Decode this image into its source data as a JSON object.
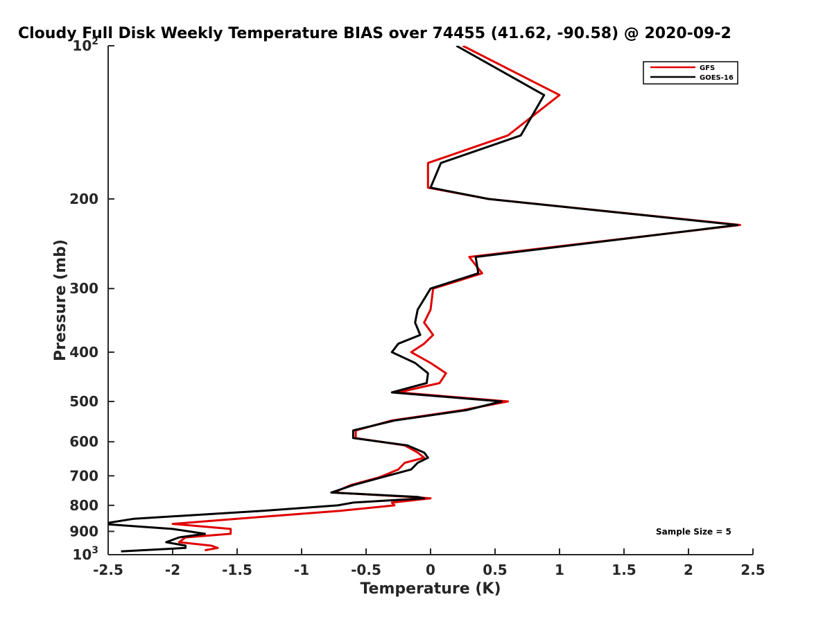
{
  "chart_data": {
    "type": "line",
    "title": "Cloudy Full Disk Weekly Temperature BIAS over 74455 (41.62, -90.58) @ 2020-09-2",
    "xlabel": "Temperature (K)",
    "ylabel": "Pressure (mb)",
    "xlim": [
      -2.5,
      2.5
    ],
    "ylim": [
      100,
      1000
    ],
    "yscale": "log",
    "y_reversed": true,
    "x_ticks": [
      -2.5,
      -2,
      -1.5,
      -1,
      -0.5,
      0,
      0.5,
      1,
      1.5,
      2,
      2.5
    ],
    "x_tick_labels": [
      "-2.5",
      "-2",
      "-1.5",
      "-1",
      "-0.5",
      "0",
      "0.5",
      "1",
      "1.5",
      "2",
      "2.5"
    ],
    "y_ticks": [
      {
        "value": 100,
        "base": "10",
        "exp": "2"
      },
      {
        "value": 200,
        "label": "200"
      },
      {
        "value": 300,
        "label": "300"
      },
      {
        "value": 400,
        "label": "400"
      },
      {
        "value": 500,
        "label": "500"
      },
      {
        "value": 600,
        "label": "600"
      },
      {
        "value": 700,
        "label": "700"
      },
      {
        "value": 800,
        "label": "800"
      },
      {
        "value": 900,
        "label": "900"
      },
      {
        "value": 1000,
        "base": "10",
        "exp": "3"
      }
    ],
    "legend_position": "top-right",
    "grid": false,
    "series": [
      {
        "name": "GFS",
        "color": "#e00000",
        "points": [
          [
            0.25,
            100
          ],
          [
            1.0,
            125
          ],
          [
            0.6,
            150
          ],
          [
            -0.02,
            170
          ],
          [
            -0.02,
            190
          ],
          [
            0.45,
            200
          ],
          [
            2.4,
            225
          ],
          [
            0.3,
            260
          ],
          [
            0.4,
            280
          ],
          [
            0.02,
            300
          ],
          [
            0.0,
            330
          ],
          [
            -0.05,
            350
          ],
          [
            0.02,
            370
          ],
          [
            -0.05,
            385
          ],
          [
            -0.15,
            400
          ],
          [
            0.0,
            420
          ],
          [
            0.12,
            440
          ],
          [
            0.07,
            460
          ],
          [
            -0.25,
            480
          ],
          [
            0.6,
            500
          ],
          [
            0.25,
            520
          ],
          [
            -0.3,
            545
          ],
          [
            -0.58,
            570
          ],
          [
            -0.58,
            590
          ],
          [
            -0.2,
            610
          ],
          [
            -0.1,
            630
          ],
          [
            -0.05,
            645
          ],
          [
            -0.2,
            660
          ],
          [
            -0.25,
            680
          ],
          [
            -0.4,
            705
          ],
          [
            -0.62,
            730
          ],
          [
            -0.75,
            755
          ],
          [
            -0.15,
            770
          ],
          [
            0.0,
            775
          ],
          [
            -0.3,
            790
          ],
          [
            -0.28,
            800
          ],
          [
            -0.7,
            820
          ],
          [
            -1.5,
            850
          ],
          [
            -2.0,
            870
          ],
          [
            -1.55,
            890
          ],
          [
            -1.55,
            910
          ],
          [
            -1.9,
            925
          ],
          [
            -1.95,
            945
          ],
          [
            -1.7,
            960
          ],
          [
            -1.65,
            970
          ],
          [
            -1.75,
            980
          ]
        ]
      },
      {
        "name": "GOES-16",
        "color": "#000000",
        "points": [
          [
            0.2,
            100
          ],
          [
            0.88,
            125
          ],
          [
            0.7,
            150
          ],
          [
            0.08,
            170
          ],
          [
            0.0,
            190
          ],
          [
            0.45,
            200
          ],
          [
            2.38,
            225
          ],
          [
            0.35,
            260
          ],
          [
            0.37,
            280
          ],
          [
            0.0,
            300
          ],
          [
            -0.1,
            330
          ],
          [
            -0.12,
            350
          ],
          [
            -0.08,
            370
          ],
          [
            -0.25,
            385
          ],
          [
            -0.3,
            400
          ],
          [
            -0.12,
            420
          ],
          [
            -0.02,
            440
          ],
          [
            -0.03,
            460
          ],
          [
            -0.3,
            480
          ],
          [
            0.55,
            500
          ],
          [
            0.28,
            520
          ],
          [
            -0.28,
            545
          ],
          [
            -0.6,
            570
          ],
          [
            -0.6,
            590
          ],
          [
            -0.18,
            610
          ],
          [
            -0.05,
            630
          ],
          [
            -0.02,
            645
          ],
          [
            -0.1,
            660
          ],
          [
            -0.15,
            680
          ],
          [
            -0.38,
            705
          ],
          [
            -0.6,
            730
          ],
          [
            -0.77,
            755
          ],
          [
            -0.1,
            770
          ],
          [
            -0.05,
            775
          ],
          [
            -0.6,
            790
          ],
          [
            -0.72,
            800
          ],
          [
            -1.3,
            820
          ],
          [
            -2.3,
            850
          ],
          [
            -2.55,
            870
          ],
          [
            -2.0,
            890
          ],
          [
            -1.75,
            910
          ],
          [
            -1.95,
            925
          ],
          [
            -2.05,
            945
          ],
          [
            -1.9,
            960
          ],
          [
            -1.9,
            970
          ],
          [
            -2.4,
            985
          ]
        ]
      }
    ],
    "annotations": [
      {
        "text": "Sample Size = 5",
        "position": "bottom-right"
      }
    ]
  }
}
